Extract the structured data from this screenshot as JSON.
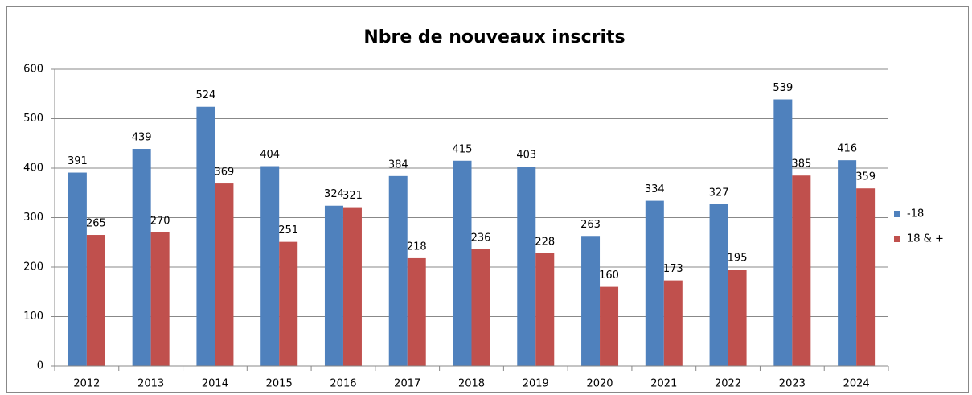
{
  "chart_data": {
    "type": "bar",
    "title": "Nbre de nouveaux inscrits",
    "categories": [
      "2012",
      "2013",
      "2014",
      "2015",
      "2016",
      "2017",
      "2018",
      "2019",
      "2020",
      "2021",
      "2022",
      "2023",
      "2024"
    ],
    "series": [
      {
        "name": "-18",
        "color": "#4f81bd",
        "values": [
          391,
          439,
          524,
          404,
          324,
          384,
          415,
          403,
          263,
          334,
          327,
          539,
          416
        ]
      },
      {
        "name": "18 & +",
        "color": "#c0504d",
        "values": [
          265,
          270,
          369,
          251,
          321,
          218,
          236,
          228,
          160,
          173,
          195,
          385,
          359
        ]
      }
    ],
    "ylim": [
      0,
      600
    ],
    "yticks": [
      0,
      100,
      200,
      300,
      400,
      500,
      600
    ],
    "grid": true,
    "legend": "right"
  }
}
